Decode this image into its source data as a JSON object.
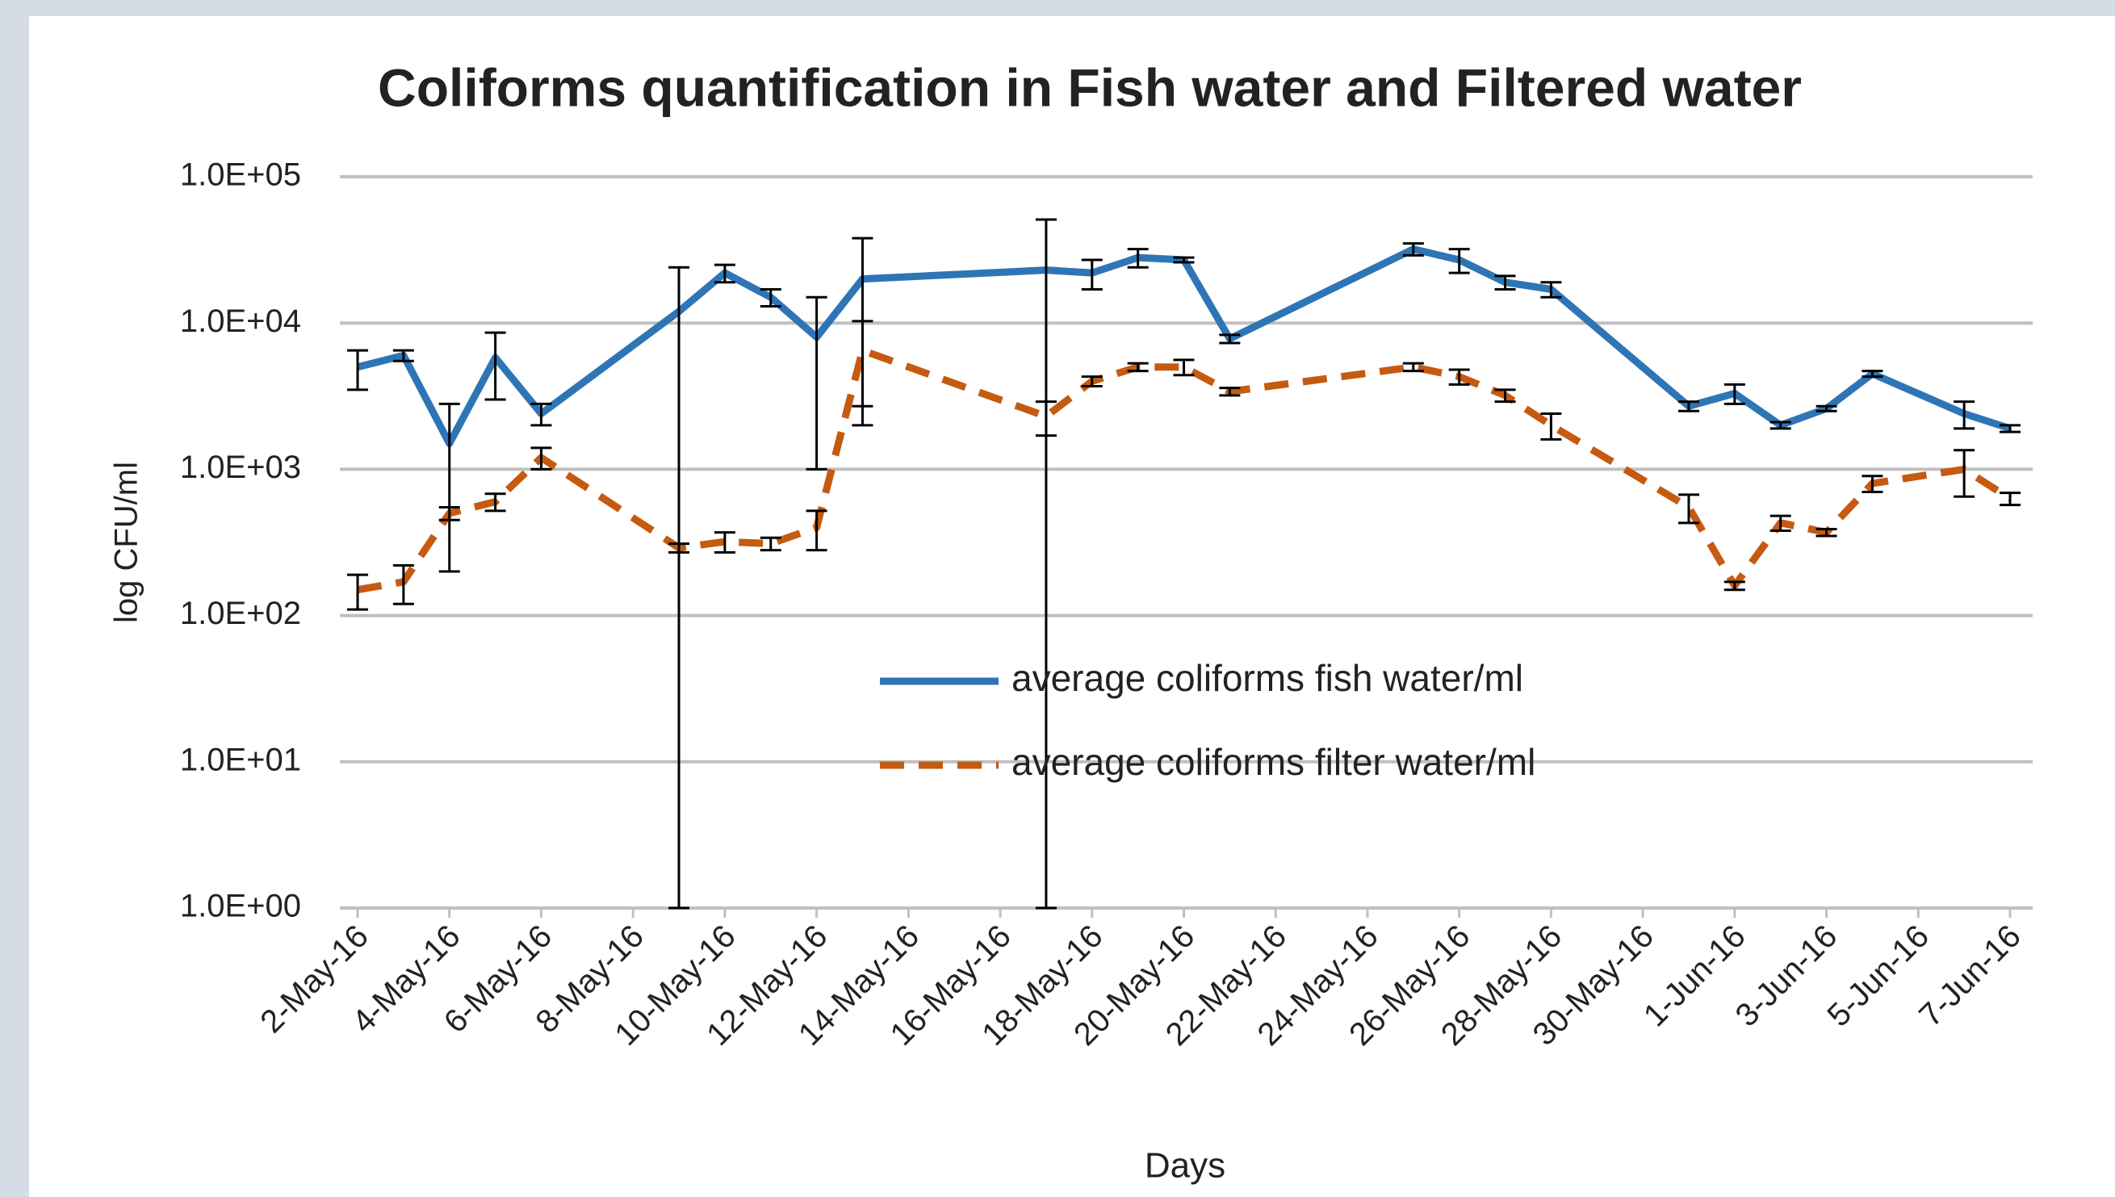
{
  "chart_data": {
    "type": "line",
    "title": "Coliforms quantification in Fish water and Filtered water",
    "xlabel": "Days",
    "ylabel": "log CFU/ml",
    "yscale": "log",
    "grid": true,
    "x": [
      "2016-05-02",
      "2016-05-03",
      "2016-05-04",
      "2016-05-05",
      "2016-05-06",
      "2016-05-09",
      "2016-05-10",
      "2016-05-11",
      "2016-05-12",
      "2016-05-13",
      "2016-05-17",
      "2016-05-18",
      "2016-05-19",
      "2016-05-20",
      "2016-05-21",
      "2016-05-25",
      "2016-05-26",
      "2016-05-27",
      "2016-05-28",
      "2016-05-31",
      "2016-06-01",
      "2016-06-02",
      "2016-06-03",
      "2016-06-04",
      "2016-06-06",
      "2016-06-07"
    ],
    "series": [
      {
        "name": "average coliforms fish water/ml",
        "color": "#2e75b6",
        "dashed": false,
        "values": [
          5000,
          6000,
          1500,
          5800,
          2400,
          12000,
          22000,
          15000,
          8000,
          20000,
          23000,
          22000,
          28000,
          27000,
          7800,
          32000,
          27000,
          19000,
          17000,
          2700,
          3300,
          2000,
          2600,
          4500,
          2400,
          1900
        ],
        "errors": [
          1500,
          500,
          1300,
          2800,
          400,
          12000,
          3000,
          2000,
          7000,
          18000,
          28000,
          5000,
          4000,
          1000,
          500,
          3000,
          5000,
          2000,
          2000,
          200,
          500,
          100,
          100,
          200,
          500,
          100
        ]
      },
      {
        "name": "average coliforms filter water/ml",
        "color": "#c55a11",
        "dashed": true,
        "values": [
          150,
          170,
          500,
          600,
          1200,
          290,
          320,
          310,
          400,
          6500,
          2300,
          4000,
          5000,
          5000,
          3400,
          5000,
          4300,
          3200,
          2000,
          550,
          160,
          430,
          370,
          800,
          1000,
          630
        ],
        "errors": [
          40,
          50,
          50,
          80,
          200,
          20,
          50,
          30,
          120,
          3800,
          600,
          300,
          300,
          600,
          200,
          300,
          500,
          300,
          400,
          120,
          10,
          50,
          20,
          100,
          350,
          60
        ]
      }
    ],
    "xlim": [
      "2016-05-02",
      "2016-06-07"
    ],
    "xticks": [
      {
        "value": "2016-05-02",
        "label": "2-May-16"
      },
      {
        "value": "2016-05-04",
        "label": "4-May-16"
      },
      {
        "value": "2016-05-06",
        "label": "6-May-16"
      },
      {
        "value": "2016-05-08",
        "label": "8-May-16"
      },
      {
        "value": "2016-05-10",
        "label": "10-May-16"
      },
      {
        "value": "2016-05-12",
        "label": "12-May-16"
      },
      {
        "value": "2016-05-14",
        "label": "14-May-16"
      },
      {
        "value": "2016-05-16",
        "label": "16-May-16"
      },
      {
        "value": "2016-05-18",
        "label": "18-May-16"
      },
      {
        "value": "2016-05-20",
        "label": "20-May-16"
      },
      {
        "value": "2016-05-22",
        "label": "22-May-16"
      },
      {
        "value": "2016-05-24",
        "label": "24-May-16"
      },
      {
        "value": "2016-05-26",
        "label": "26-May-16"
      },
      {
        "value": "2016-05-28",
        "label": "28-May-16"
      },
      {
        "value": "2016-05-30",
        "label": "30-May-16"
      },
      {
        "value": "2016-06-01",
        "label": "1-Jun-16"
      },
      {
        "value": "2016-06-03",
        "label": "3-Jun-16"
      },
      {
        "value": "2016-06-05",
        "label": "5-Jun-16"
      },
      {
        "value": "2016-06-07",
        "label": "7-Jun-16"
      }
    ],
    "ylim": [
      1,
      100000
    ],
    "yticks": [
      {
        "value": 1,
        "label": "1.0E+00"
      },
      {
        "value": 10,
        "label": "1.0E+01"
      },
      {
        "value": 100,
        "label": "1.0E+02"
      },
      {
        "value": 1000,
        "label": "1.0E+03"
      },
      {
        "value": 10000,
        "label": "1.0E+04"
      },
      {
        "value": 100000,
        "label": "1.0E+05"
      }
    ]
  }
}
